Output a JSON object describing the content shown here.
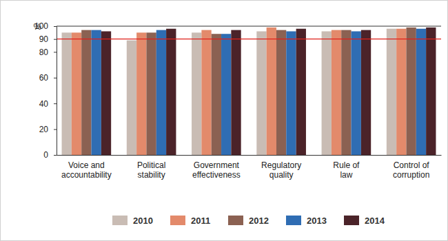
{
  "chart_data": {
    "type": "bar",
    "y_label": "%",
    "categories": [
      "Voice and accountability",
      "Political stability",
      "Government effectiveness",
      "Regulatory quality",
      "Rule of law",
      "Control of corruption"
    ],
    "series": [
      {
        "name": "2010",
        "color": "#c9bcb4",
        "values": [
          95,
          89,
          95,
          96,
          96,
          98
        ]
      },
      {
        "name": "2011",
        "color": "#e38a6b",
        "values": [
          95,
          95,
          97,
          99,
          97,
          98
        ]
      },
      {
        "name": "2012",
        "color": "#8b6152",
        "values": [
          97,
          95,
          94,
          97,
          97,
          99
        ]
      },
      {
        "name": "2013",
        "color": "#2f6db3",
        "values": [
          97,
          97,
          94,
          96,
          96,
          98
        ]
      },
      {
        "name": "2014",
        "color": "#4b2329",
        "values": [
          96,
          98,
          97,
          98,
          97,
          99
        ]
      }
    ],
    "ylim": [
      0,
      100
    ],
    "yticks": [
      0,
      20,
      40,
      60,
      80,
      90,
      100
    ],
    "reference_line": 90,
    "grid": false,
    "legend": "bottom"
  }
}
